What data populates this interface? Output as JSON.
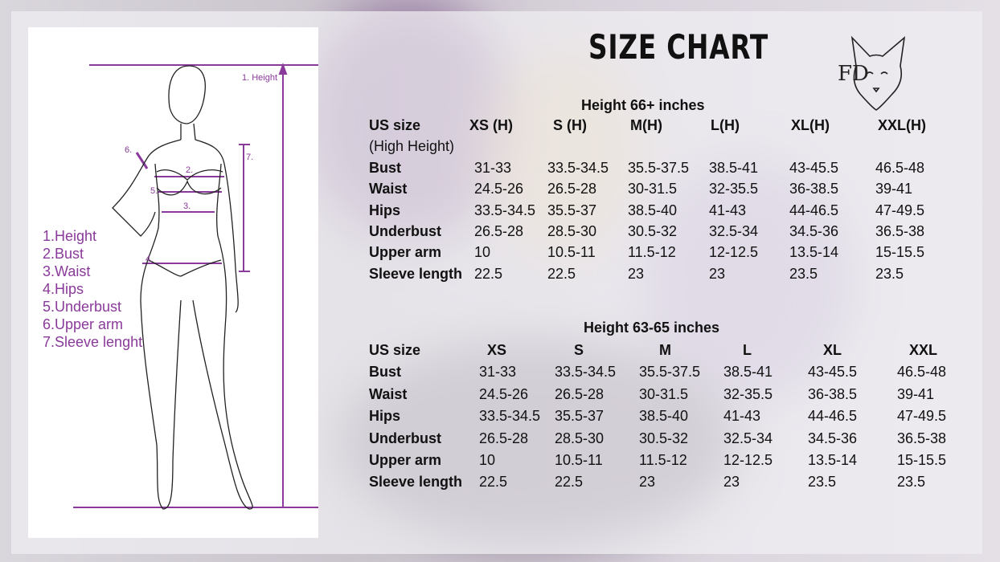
{
  "title": "SIZE CHART",
  "logo_text": "FD",
  "legend": [
    "1.Height",
    "2.Bust",
    "3.Waist",
    "4.Hips",
    "5.Underbust",
    "6.Upper arm",
    "7.Sleeve lenght"
  ],
  "figure_labels": {
    "height": "1. Height",
    "bust": "2.",
    "waist": "3.",
    "hips": "4.",
    "underbust": "5.",
    "upper_arm": "6.",
    "sleeve": "7."
  },
  "colors": {
    "accent": "#8a3a9a"
  },
  "tables": [
    {
      "caption": "Height 66+ inches",
      "header": [
        "US size",
        "XS (H)",
        "S (H)",
        "M(H)",
        "L(H)",
        "XL(H)",
        "XXL(H)"
      ],
      "subheader": "(High Height)",
      "rows": [
        [
          "Bust",
          "31-33",
          "33.5-34.5",
          "35.5-37.5",
          "38.5-41",
          "43-45.5",
          "46.5-48"
        ],
        [
          "Waist",
          "24.5-26",
          "26.5-28",
          "30-31.5",
          "32-35.5",
          "36-38.5",
          "39-41"
        ],
        [
          "Hips",
          "33.5-34.5",
          "35.5-37",
          "38.5-40",
          "41-43",
          "44-46.5",
          "47-49.5"
        ],
        [
          "Underbust",
          "26.5-28",
          "28.5-30",
          "30.5-32",
          "32.5-34",
          "34.5-36",
          "36.5-38"
        ],
        [
          "Upper arm",
          "10",
          "10.5-11",
          "11.5-12",
          "12-12.5",
          "13.5-14",
          "15-15.5"
        ],
        [
          "Sleeve length",
          "22.5",
          "22.5",
          "23",
          "23",
          "23.5",
          "23.5"
        ]
      ]
    },
    {
      "caption": "Height 63-65 inches",
      "header": [
        "US size",
        "XS",
        "S",
        "M",
        "L",
        "XL",
        "XXL"
      ],
      "rows": [
        [
          "Bust",
          "31-33",
          "33.5-34.5",
          "35.5-37.5",
          "38.5-41",
          "43-45.5",
          "46.5-48"
        ],
        [
          "Waist",
          "24.5-26",
          "26.5-28",
          "30-31.5",
          "32-35.5",
          "36-38.5",
          "39-41"
        ],
        [
          "Hips",
          "33.5-34.5",
          "35.5-37",
          "38.5-40",
          "41-43",
          "44-46.5",
          "47-49.5"
        ],
        [
          "Underbust",
          "26.5-28",
          "28.5-30",
          "30.5-32",
          "32.5-34",
          "34.5-36",
          "36.5-38"
        ],
        [
          "Upper arm",
          "10",
          "10.5-11",
          "11.5-12",
          "12-12.5",
          "13.5-14",
          "15-15.5"
        ],
        [
          "Sleeve length",
          "22.5",
          "22.5",
          "23",
          "23",
          "23.5",
          "23.5"
        ]
      ]
    }
  ]
}
